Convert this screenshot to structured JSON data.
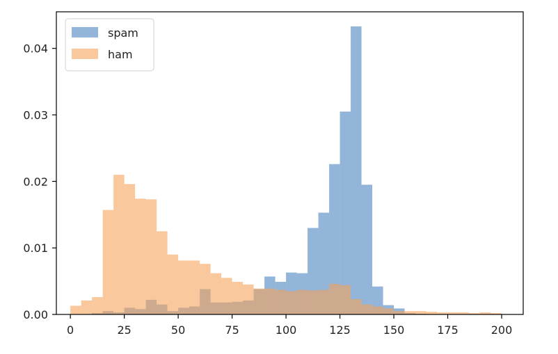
{
  "chart_data": {
    "type": "bar",
    "bin_edges": [
      0,
      5,
      10,
      15,
      20,
      25,
      30,
      35,
      40,
      45,
      50,
      55,
      60,
      65,
      70,
      75,
      80,
      85,
      90,
      95,
      100,
      105,
      110,
      115,
      120,
      125,
      130,
      135,
      140,
      145,
      150,
      155,
      160,
      165,
      170,
      175,
      180,
      185,
      190,
      195,
      200
    ],
    "series": [
      {
        "name": "spam",
        "color": "#4a84c0",
        "values": [
          0,
          0,
          0.0002,
          0.0005,
          0.0003,
          0.001,
          0.0008,
          0.0022,
          0.0015,
          0.0005,
          0.001,
          0.0012,
          0.0038,
          0.0018,
          0.0018,
          0.0019,
          0.0021,
          0.0038,
          0.0057,
          0.0049,
          0.0063,
          0.0062,
          0.013,
          0.0153,
          0.0226,
          0.0305,
          0.0433,
          0.0195,
          0.0042,
          0.0014,
          0.0009,
          0.0002,
          0.0001,
          0,
          0,
          0,
          0,
          0,
          0,
          0
        ]
      },
      {
        "name": "ham",
        "color": "#f5a45a",
        "values": [
          0.0013,
          0.0021,
          0.0026,
          0.0157,
          0.021,
          0.0196,
          0.0174,
          0.0173,
          0.0125,
          0.009,
          0.0081,
          0.0081,
          0.0076,
          0.0062,
          0.0055,
          0.0049,
          0.0045,
          0.0039,
          0.0039,
          0.0037,
          0.0035,
          0.0037,
          0.0036,
          0.0037,
          0.0046,
          0.0044,
          0.0023,
          0.0015,
          0.0012,
          0.0009,
          0.0005,
          0.0005,
          0.0005,
          0.0004,
          0.0003,
          0.0003,
          0.0003,
          0.0002,
          0.0003,
          0.0002
        ]
      }
    ],
    "xlim": [
      -6.5,
      210
    ],
    "ylim": [
      0,
      0.0455
    ],
    "xticks": [
      0,
      25,
      50,
      75,
      100,
      125,
      150,
      175,
      200
    ],
    "yticks": [
      0.0,
      0.01,
      0.02,
      0.03,
      0.04
    ],
    "xtick_labels": [
      "0",
      "25",
      "50",
      "75",
      "100",
      "125",
      "150",
      "175",
      "200"
    ],
    "ytick_labels": [
      "0.00",
      "0.01",
      "0.02",
      "0.03",
      "0.04"
    ],
    "bar_alpha": 0.6,
    "grid": false,
    "legend_position": "upper-left",
    "title": "",
    "xlabel": "",
    "ylabel": ""
  }
}
